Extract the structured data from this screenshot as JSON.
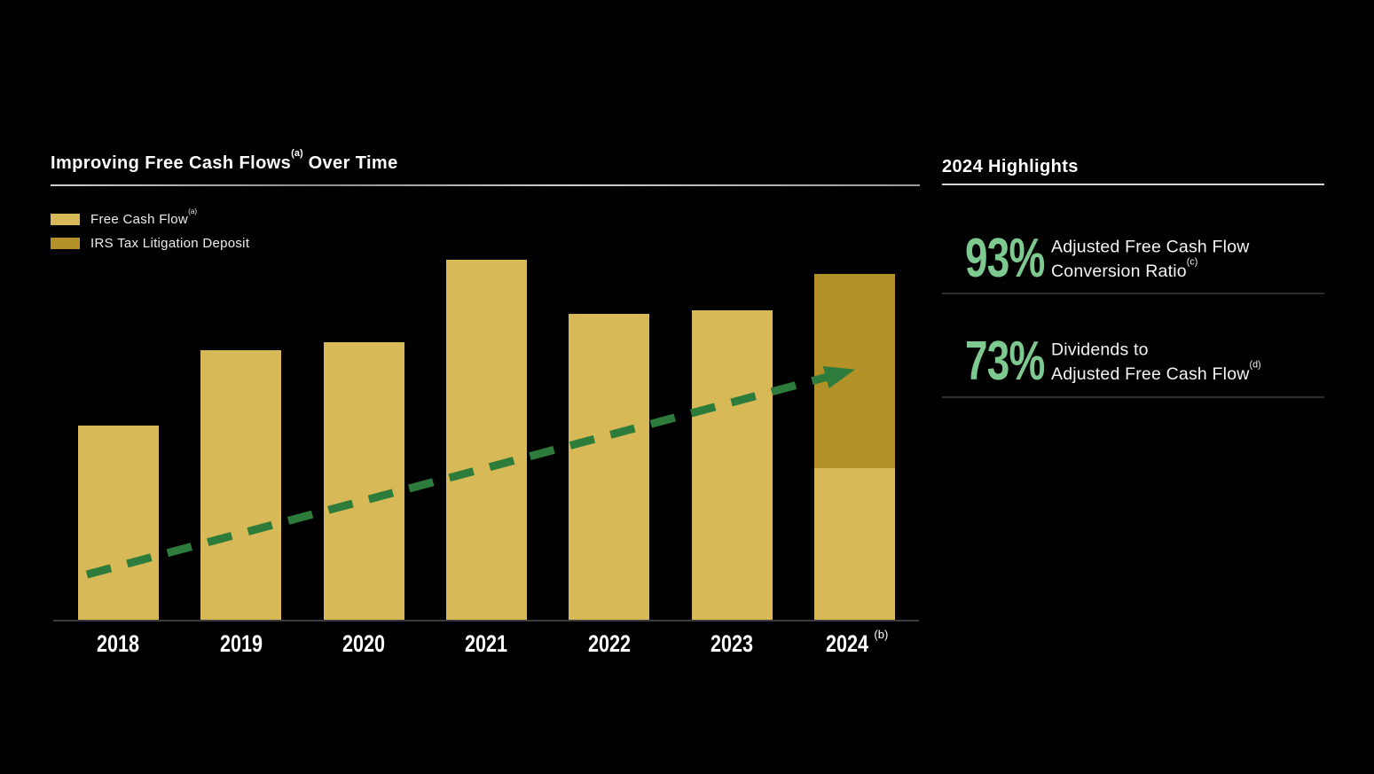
{
  "chart": {
    "title_pre": "Improving Free Cash Flows",
    "title_sup": "(a)",
    "title_post": " Over Time",
    "legend": [
      {
        "label": "Free Cash Flow",
        "sup": "(a)",
        "color": "#d7ba57"
      },
      {
        "label": "IRS Tax Litigation Deposit",
        "sup": "",
        "color": "#b29128"
      }
    ]
  },
  "chart_data": {
    "type": "bar",
    "stacked": true,
    "title": "Improving Free Cash Flows(a) Over Time",
    "xlabel": "",
    "ylabel": "",
    "note": "no numeric axis shown; values are relative heights normalized to 2021 = 100",
    "categories": [
      {
        "label": "2018",
        "sup": ""
      },
      {
        "label": "2019",
        "sup": ""
      },
      {
        "label": "2020",
        "sup": ""
      },
      {
        "label": "2021",
        "sup": ""
      },
      {
        "label": "2022",
        "sup": ""
      },
      {
        "label": "2023",
        "sup": ""
      },
      {
        "label": "2024",
        "sup": "(b)"
      }
    ],
    "series": [
      {
        "name": "Free Cash Flow",
        "color": "#d7ba57",
        "values": [
          54,
          75,
          77,
          100,
          85,
          86,
          42
        ]
      },
      {
        "name": "IRS Tax Litigation Deposit",
        "color": "#b29128",
        "values": [
          0,
          0,
          0,
          0,
          0,
          0,
          54
        ]
      }
    ],
    "trend_arrow": {
      "style": "dashed",
      "color": "#2e7c3c",
      "direction": "up-right"
    },
    "legend_position": "top-left",
    "grid": false
  },
  "highlights": {
    "title": "2024 Highlights",
    "accent_color": "#7ec98f",
    "stats": [
      {
        "value": "93%",
        "line1": "Adjusted Free Cash Flow",
        "line2": "Conversion Ratio",
        "sup": "(c)"
      },
      {
        "value": "73%",
        "line1": "Dividends to",
        "line2": "Adjusted Free Cash Flow",
        "sup": "(d)"
      }
    ]
  }
}
